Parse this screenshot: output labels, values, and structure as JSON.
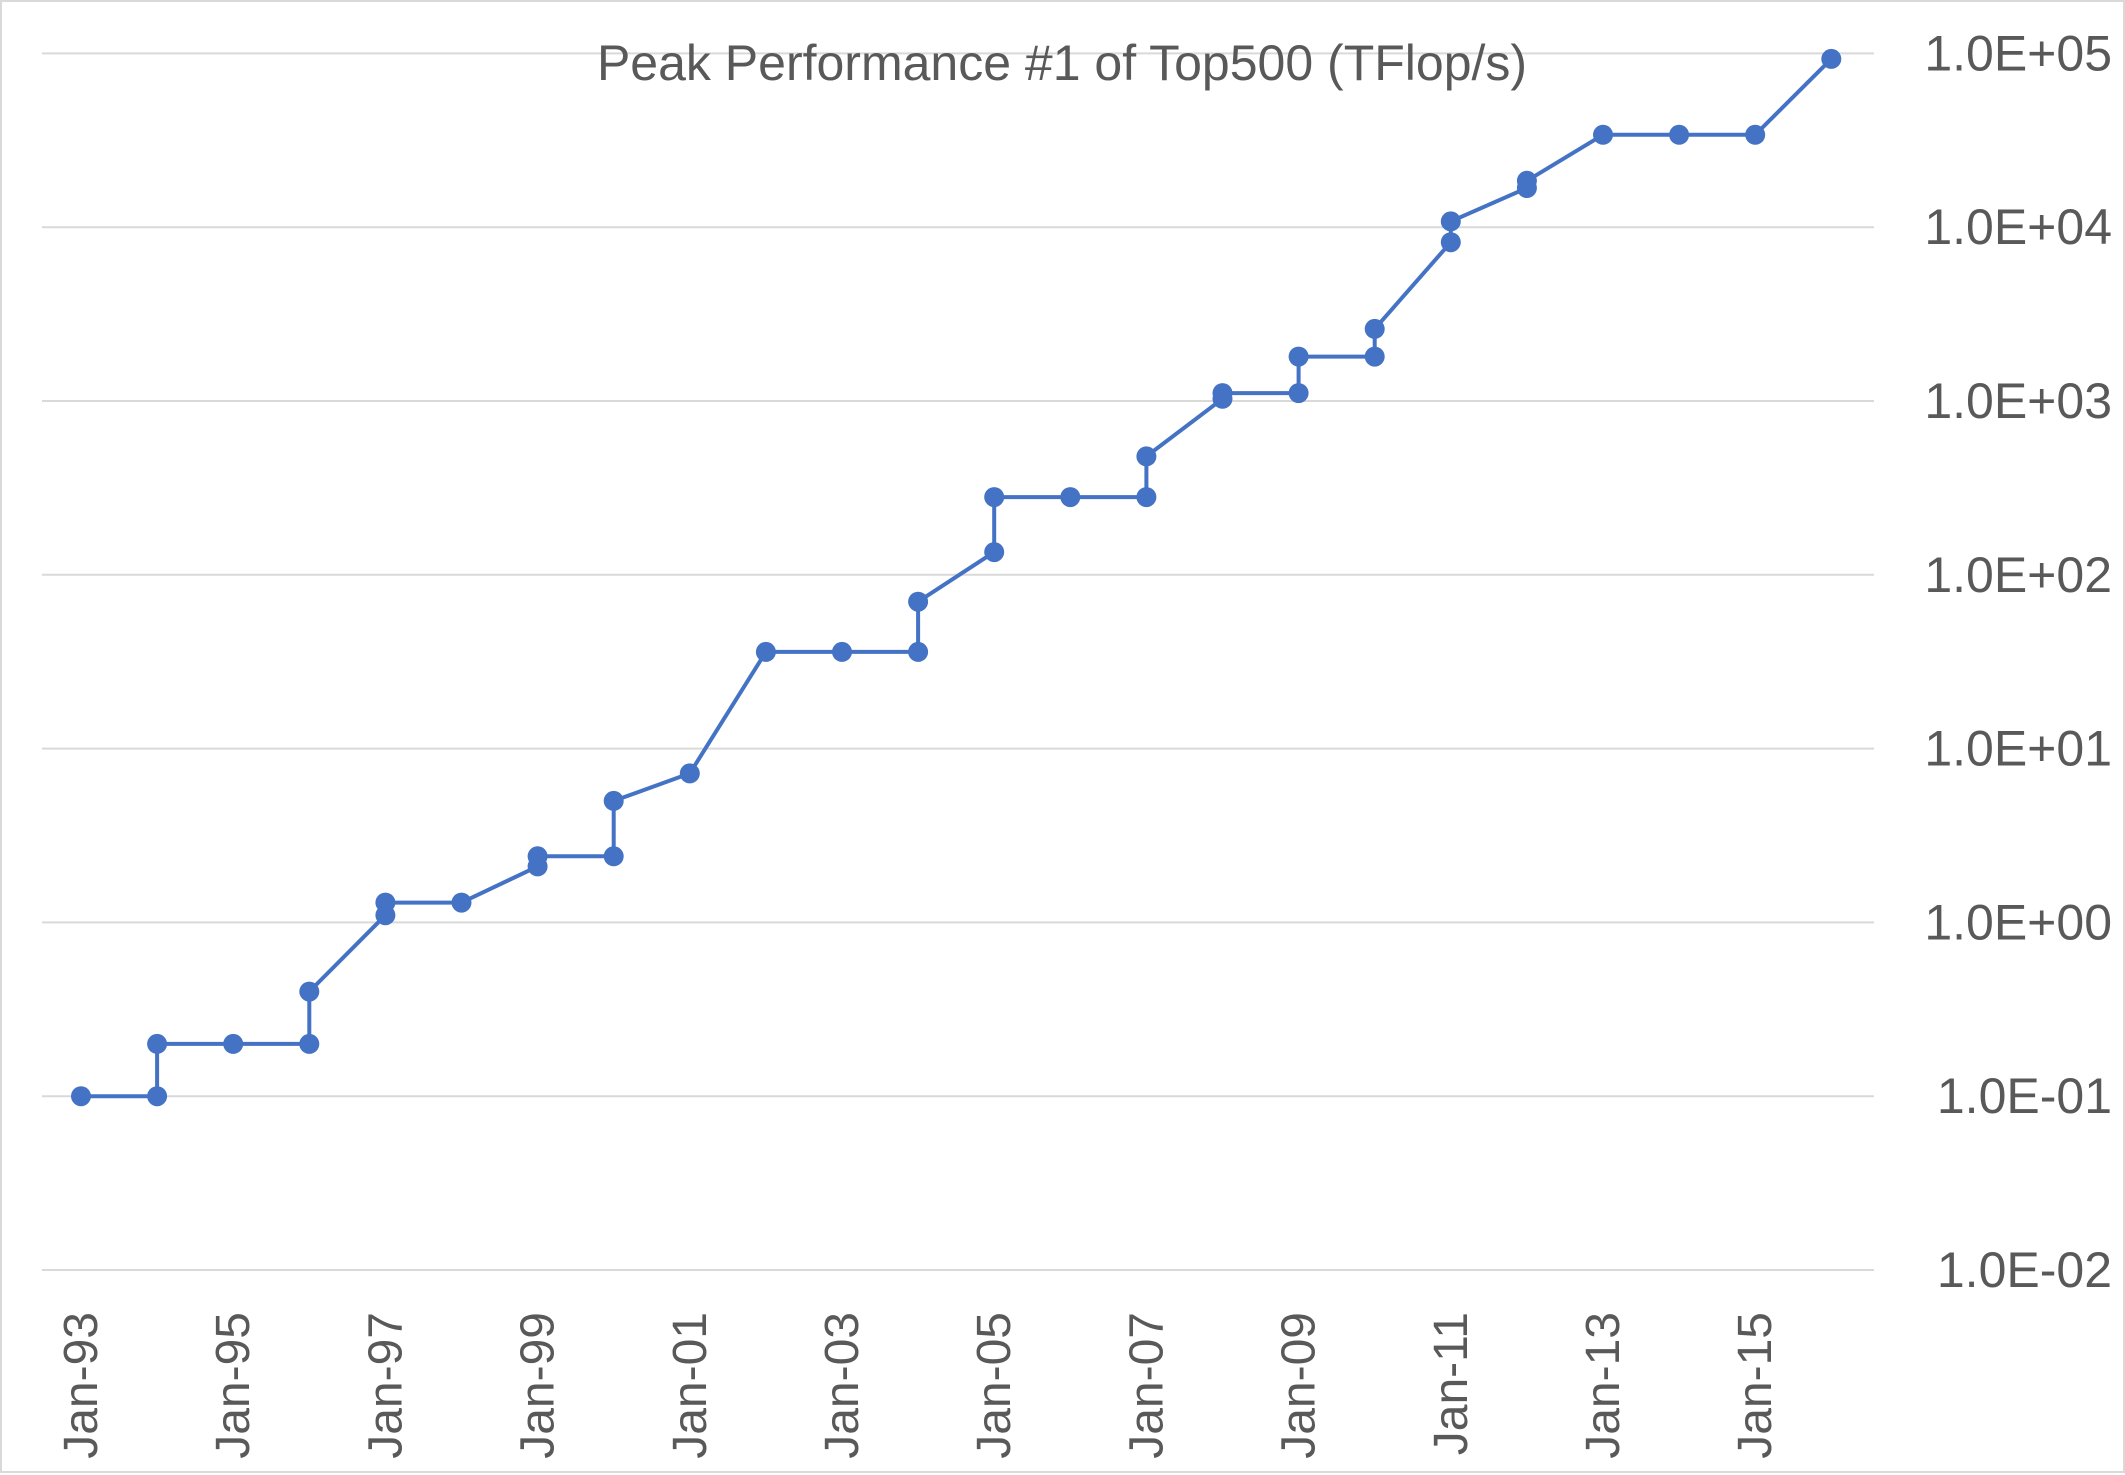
{
  "chart_data": {
    "type": "line",
    "title": "Peak Performance #1 of Top500 (TFlop/s)",
    "xlabel": "",
    "ylabel": "",
    "y_scale": "log",
    "ylim": [
      0.01,
      100000
    ],
    "y_tick_values": [
      0.01,
      0.1,
      1,
      10,
      100,
      1000,
      10000,
      100000
    ],
    "y_tick_labels": [
      "1.0E-02",
      "1.0E-01",
      "1.0E+00",
      "1.0E+01",
      "1.0E+02",
      "1.0E+03",
      "1.0E+04",
      "1.0E+05"
    ],
    "y_axis_position": "right",
    "grid": true,
    "x_tick_years": [
      1993,
      1995,
      1997,
      1999,
      2001,
      2003,
      2005,
      2007,
      2009,
      2011,
      2013,
      2015
    ],
    "x_tick_labels": [
      "Jan-93",
      "Jan-95",
      "Jan-97",
      "Jan-99",
      "Jan-01",
      "Jan-03",
      "Jan-05",
      "Jan-07",
      "Jan-09",
      "Jan-11",
      "Jan-13",
      "Jan-15"
    ],
    "xlim_years": [
      1992.5,
      2016.5
    ],
    "color": "#4472c4",
    "series": [
      {
        "name": "Peak Performance #1 of Top500 (TFlop/s)",
        "x": [
          1993.0,
          1994.0,
          1994.0,
          1995.0,
          1996.0,
          1996.0,
          1997.0,
          1997.0,
          1998.0,
          1999.0,
          1999.0,
          2000.0,
          2000.0,
          2001.0,
          2002.0,
          2003.0,
          2004.0,
          2004.0,
          2005.0,
          2005.0,
          2006.0,
          2007.0,
          2007.0,
          2008.0,
          2008.0,
          2009.0,
          2009.0,
          2010.0,
          2010.0,
          2011.0,
          2011.0,
          2012.0,
          2012.0,
          2013.0,
          2014.0,
          2015.0,
          2016.0
        ],
        "y": [
          0.1,
          0.1,
          0.2,
          0.2,
          0.2,
          0.4,
          1.1,
          1.3,
          1.3,
          2.1,
          2.4,
          2.4,
          5.0,
          7.2,
          36,
          36,
          36,
          70,
          135,
          280,
          280,
          280,
          480,
          1030,
          1110,
          1110,
          1800,
          1800,
          2600,
          8200,
          10800,
          16800,
          18500,
          34000,
          34000,
          34000,
          93000
        ]
      }
    ]
  }
}
